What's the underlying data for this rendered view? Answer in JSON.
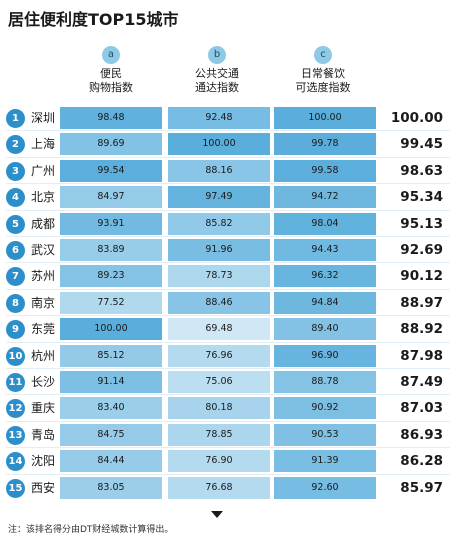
{
  "chart_data": {
    "type": "table",
    "title": "居住便利度TOP15城市",
    "columns": [
      {
        "badge": "a",
        "label_line1": "便民",
        "label_line2": "购物指数"
      },
      {
        "badge": "b",
        "label_line1": "公共交通",
        "label_line2": "通达指数"
      },
      {
        "badge": "c",
        "label_line1": "日常餐饮",
        "label_line2": "可选度指数"
      }
    ],
    "rows": [
      {
        "rank": "1",
        "city": "深圳",
        "values": [
          "98.48",
          "92.48",
          "100.00"
        ],
        "total": "100.00"
      },
      {
        "rank": "2",
        "city": "上海",
        "values": [
          "89.69",
          "100.00",
          "99.78"
        ],
        "total": "99.45"
      },
      {
        "rank": "3",
        "city": "广州",
        "values": [
          "99.54",
          "88.16",
          "99.58"
        ],
        "total": "98.63"
      },
      {
        "rank": "4",
        "city": "北京",
        "values": [
          "84.97",
          "97.49",
          "94.72"
        ],
        "total": "95.34"
      },
      {
        "rank": "5",
        "city": "成都",
        "values": [
          "93.91",
          "85.82",
          "98.04"
        ],
        "total": "95.13"
      },
      {
        "rank": "6",
        "city": "武汉",
        "values": [
          "83.89",
          "91.96",
          "94.43"
        ],
        "total": "92.69"
      },
      {
        "rank": "7",
        "city": "苏州",
        "values": [
          "89.23",
          "78.73",
          "96.32"
        ],
        "total": "90.12"
      },
      {
        "rank": "8",
        "city": "南京",
        "values": [
          "77.52",
          "88.46",
          "94.84"
        ],
        "total": "88.97"
      },
      {
        "rank": "9",
        "city": "东莞",
        "values": [
          "100.00",
          "69.48",
          "89.40"
        ],
        "total": "88.92"
      },
      {
        "rank": "10",
        "city": "杭州",
        "values": [
          "85.12",
          "76.96",
          "96.90"
        ],
        "total": "87.98"
      },
      {
        "rank": "11",
        "city": "长沙",
        "values": [
          "91.14",
          "75.06",
          "88.78"
        ],
        "total": "87.49"
      },
      {
        "rank": "12",
        "city": "重庆",
        "values": [
          "83.40",
          "80.18",
          "90.92"
        ],
        "total": "87.03"
      },
      {
        "rank": "13",
        "city": "青岛",
        "values": [
          "84.75",
          "78.85",
          "90.53"
        ],
        "total": "86.93"
      },
      {
        "rank": "14",
        "city": "沈阳",
        "values": [
          "84.44",
          "76.90",
          "91.39"
        ],
        "total": "86.28"
      },
      {
        "rank": "15",
        "city": "西安",
        "values": [
          "83.05",
          "76.68",
          "92.60"
        ],
        "total": "85.97"
      }
    ],
    "footnote": "注：该排名得分由DT财经城数计算得出。",
    "colors": {
      "low": "#d6ebf6",
      "high": "#5aaedc",
      "badge": "#2d8fc9",
      "header_badge": "#8ec9e6"
    }
  }
}
